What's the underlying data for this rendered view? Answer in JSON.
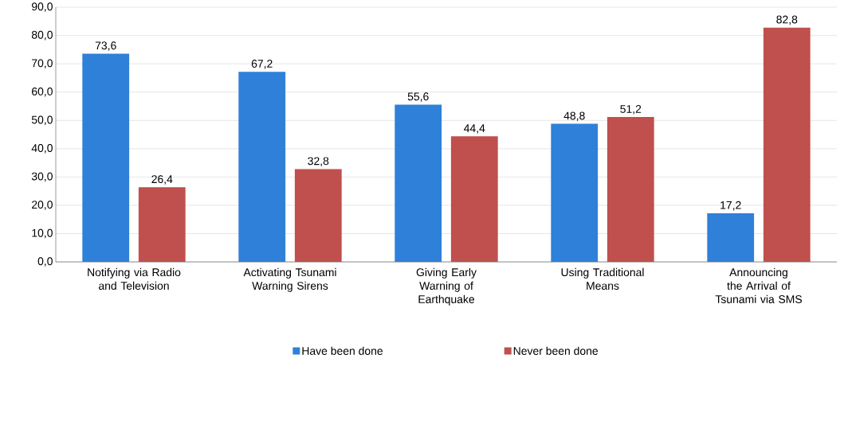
{
  "chart_data": {
    "type": "bar",
    "categories": [
      "Notifying via Radio and Television",
      "Activating Tsunami Warning Sirens",
      "Giving Early Warning of Earthquake",
      "Using Traditional Means",
      "Announcing the Arrival of Tsunami via SMS"
    ],
    "series": [
      {
        "name": "Have been done",
        "color": "#2f80d8",
        "values": [
          73.6,
          67.2,
          55.6,
          48.8,
          17.2
        ],
        "value_labels": [
          "73,6",
          "67,2",
          "55,6",
          "48,8",
          "17,2"
        ]
      },
      {
        "name": "Never been done",
        "color": "#c0504d",
        "values": [
          26.4,
          32.8,
          44.4,
          51.2,
          82.8
        ],
        "value_labels": [
          "26,4",
          "32,8",
          "44,4",
          "51,2",
          "82,8"
        ]
      }
    ],
    "ylim": [
      0,
      90
    ],
    "yticks": [
      {
        "value": 0,
        "label": "0,0"
      },
      {
        "value": 10,
        "label": "10,0"
      },
      {
        "value": 20,
        "label": "20,0"
      },
      {
        "value": 30,
        "label": "30,0"
      },
      {
        "value": 40,
        "label": "40,0"
      },
      {
        "value": 50,
        "label": "50,0"
      },
      {
        "value": 60,
        "label": "60,0"
      },
      {
        "value": 70,
        "label": "70,0"
      },
      {
        "value": 80,
        "label": "80,0"
      },
      {
        "value": 90,
        "label": "90,0"
      }
    ],
    "grid": "y",
    "legend": "bottom"
  }
}
